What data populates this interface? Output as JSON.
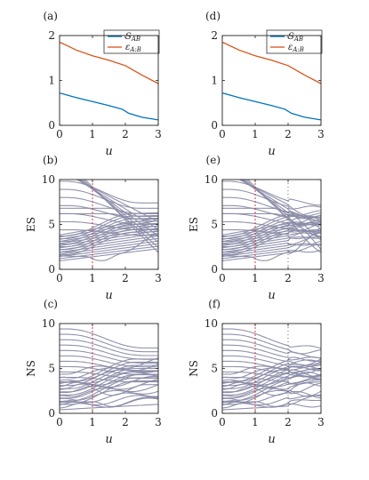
{
  "figure": {
    "panels": [
      {
        "label": "(a)",
        "kind": "entropy",
        "xlabel": "u",
        "ylabel": ""
      },
      {
        "label": "(b)",
        "kind": "es",
        "xlabel": "u",
        "ylabel": "ES",
        "cut": false
      },
      {
        "label": "(c)",
        "kind": "ns",
        "xlabel": "u",
        "ylabel": "NS",
        "cut": false
      },
      {
        "label": "(d)",
        "kind": "entropy",
        "xlabel": "u",
        "ylabel": ""
      },
      {
        "label": "(e)",
        "kind": "es",
        "xlabel": "u",
        "ylabel": "ES",
        "cut": true
      },
      {
        "label": "(f)",
        "kind": "ns",
        "xlabel": "u",
        "ylabel": "NS",
        "cut": true
      }
    ]
  },
  "chart_data": [
    {
      "type": "line",
      "panel": "(a)",
      "xlim": [
        0,
        3
      ],
      "ylim": [
        0,
        2
      ],
      "xticks": [
        "0",
        "1",
        "2",
        "3"
      ],
      "yticks": [
        "0",
        "1",
        "2"
      ],
      "xlabel": "u",
      "legend_position": "top-right",
      "series": [
        {
          "name": "S_AB",
          "color": "#0072bd",
          "x": [
            0,
            0.5,
            1,
            1.5,
            1.9,
            2.1,
            2.5,
            3
          ],
          "y": [
            0.72,
            0.62,
            0.53,
            0.44,
            0.36,
            0.27,
            0.18,
            0.12
          ]
        },
        {
          "name": "ε_A:B",
          "color": "#d95319",
          "x": [
            0,
            0.1,
            0.5,
            1,
            1.5,
            2.0,
            2.5,
            3
          ],
          "y": [
            1.85,
            1.82,
            1.68,
            1.55,
            1.45,
            1.33,
            1.12,
            0.93
          ]
        }
      ]
    },
    {
      "type": "line",
      "panel": "(b)",
      "xlim": [
        0,
        3
      ],
      "ylim": [
        0,
        10
      ],
      "xticks": [
        "0",
        "1",
        "2",
        "3"
      ],
      "yticks": [
        "0",
        "5",
        "10"
      ],
      "xlabel": "u",
      "ylabel": "ES",
      "line_color": "#8a8ca8",
      "marker_line_x": 1,
      "marker_line_color": "#d62728"
    },
    {
      "type": "line",
      "panel": "(c)",
      "xlim": [
        0,
        3
      ],
      "ylim": [
        0,
        10
      ],
      "xticks": [
        "0",
        "1",
        "2",
        "3"
      ],
      "yticks": [
        "0",
        "5",
        "10"
      ],
      "xlabel": "u",
      "ylabel": "NS",
      "line_color": "#8a8ca8",
      "marker_line_x": 1,
      "marker_line_color": "#d62728"
    },
    {
      "type": "line",
      "panel": "(d)",
      "xlim": [
        0,
        3
      ],
      "ylim": [
        0,
        2
      ],
      "xticks": [
        "0",
        "1",
        "2",
        "3"
      ],
      "yticks": [
        "0",
        "1",
        "2"
      ],
      "xlabel": "u",
      "legend_position": "top-right",
      "series": [
        {
          "name": "S_AB",
          "color": "#0072bd",
          "x": [
            0,
            0.5,
            1,
            1.5,
            1.9,
            2.1,
            2.5,
            3
          ],
          "y": [
            0.72,
            0.62,
            0.53,
            0.44,
            0.36,
            0.27,
            0.18,
            0.12
          ]
        },
        {
          "name": "ε_A:B",
          "color": "#d95319",
          "x": [
            0,
            0.1,
            0.5,
            1,
            1.5,
            2.0,
            2.5,
            3
          ],
          "y": [
            1.85,
            1.82,
            1.68,
            1.55,
            1.45,
            1.33,
            1.12,
            0.93
          ]
        }
      ]
    },
    {
      "type": "line",
      "panel": "(e)",
      "xlim": [
        0,
        3
      ],
      "ylim": [
        0,
        10
      ],
      "xticks": [
        "0",
        "1",
        "2",
        "3"
      ],
      "yticks": [
        "0",
        "5",
        "10"
      ],
      "xlabel": "u",
      "ylabel": "ES",
      "line_color": "#8a8ca8",
      "marker_line_x": 1,
      "marker_line_color": "#d62728"
    },
    {
      "type": "line",
      "panel": "(f)",
      "xlim": [
        0,
        3
      ],
      "ylim": [
        0,
        10
      ],
      "xticks": [
        "0",
        "1",
        "2",
        "3"
      ],
      "yticks": [
        "0",
        "5",
        "10"
      ],
      "xlabel": "u",
      "ylabel": "NS",
      "line_color": "#8a8ca8",
      "marker_line_x": 1,
      "marker_line_color": "#d62728"
    }
  ]
}
